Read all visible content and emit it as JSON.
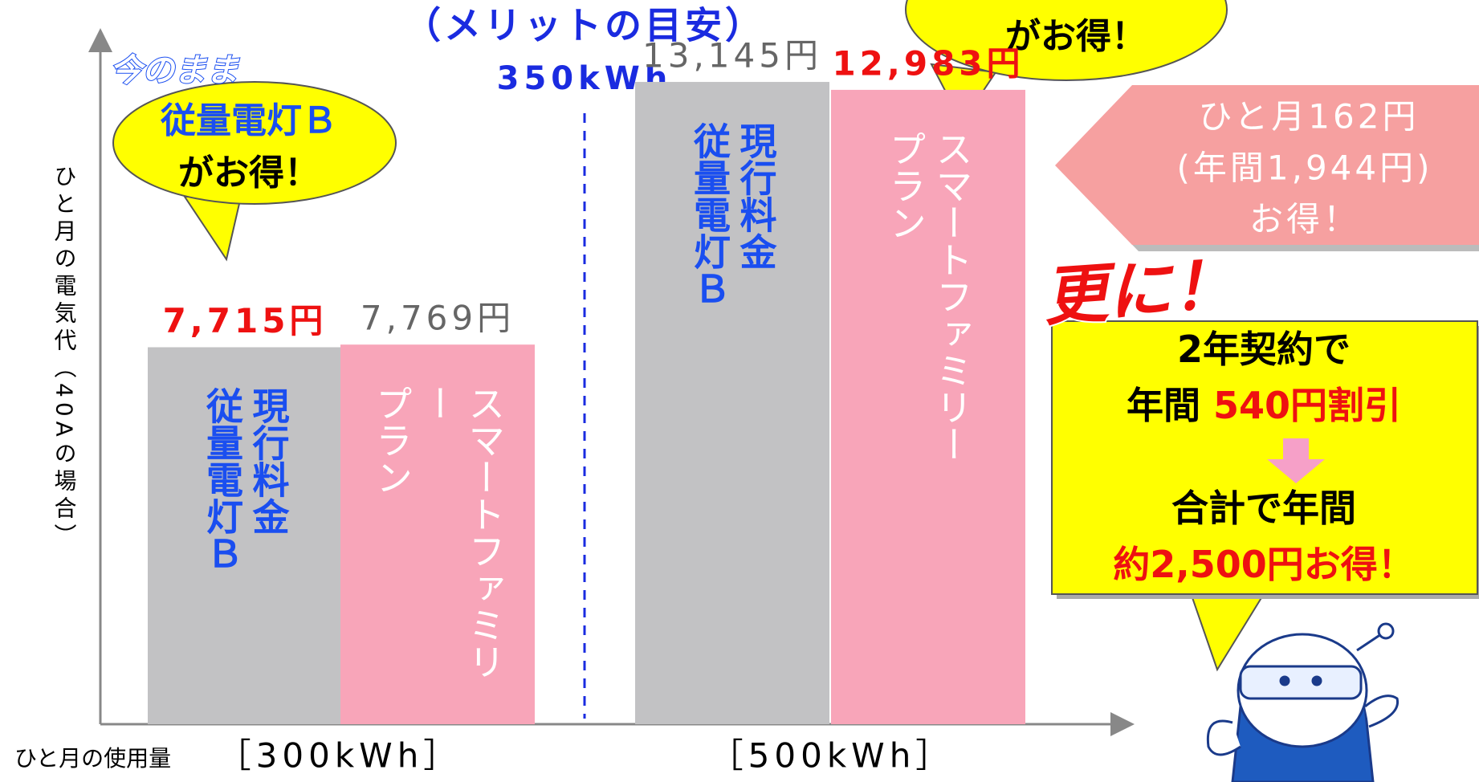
{
  "chart_data": {
    "type": "bar",
    "title": "（メリットの目安）",
    "divider_label": "350kWh",
    "x_label": "ひと月の使用量",
    "y_label": "ひと月の電気代（40Aの場合）",
    "categories": [
      "［300kWh］",
      "［500kWh］"
    ],
    "series": [
      {
        "name": "現行料金\n従量電灯Ｂ",
        "color": "#c2c2c4",
        "text_color": "#1a4ef0",
        "values": [
          7715,
          13145
        ],
        "value_labels": [
          "7,715円",
          "13,145円"
        ],
        "value_label_colors": [
          "#ee1111",
          "#666666"
        ]
      },
      {
        "name": "スマートファミリー\nプラン",
        "color": "#f8a5b9",
        "text_color": "#ffffff",
        "values": [
          7769,
          12983
        ],
        "value_labels": [
          "7,769円",
          "12,983円"
        ],
        "value_label_colors": [
          "#666666",
          "#ee1111"
        ]
      }
    ],
    "ylim": [
      0,
      14000
    ]
  },
  "callouts": {
    "left_tag": "今のまま",
    "left_bubble": [
      "従量電灯Ｂ",
      "がお得！"
    ],
    "top_bubble": "がお得！",
    "savings": [
      "ひと月162円",
      "(年間1,944円)",
      "お得！"
    ],
    "more": "更に！",
    "box": [
      [
        "2年契約で"
      ],
      [
        "年間 ",
        "540円割引"
      ],
      [
        "合計で年間"
      ],
      [
        "約2,500円お得！"
      ]
    ]
  }
}
